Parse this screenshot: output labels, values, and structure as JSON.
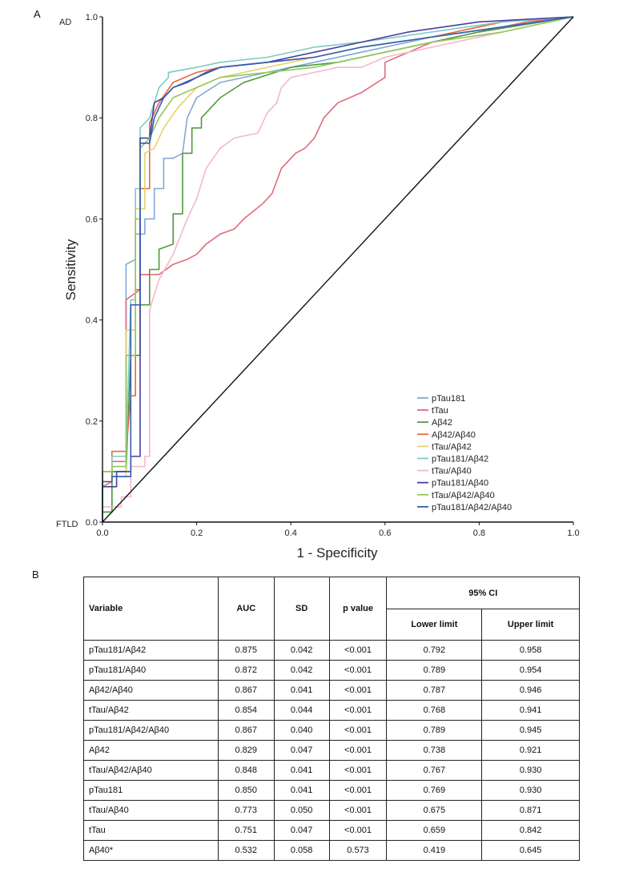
{
  "panel_a_label": "A",
  "panel_b_label": "B",
  "chart_data": {
    "type": "line",
    "xlabel": "1 - Specificity",
    "ylabel": "Sensitivity",
    "xlim": [
      0,
      1
    ],
    "ylim": [
      0,
      1
    ],
    "xticks": [
      "0.0",
      "0.2",
      "0.4",
      "0.6",
      "0.8",
      "1.0"
    ],
    "yticks": [
      "0.0",
      "0.2",
      "0.4",
      "0.6",
      "0.8",
      "1.0"
    ],
    "y_top_label": "AD",
    "y_bottom_label": "FTLD",
    "grid": false,
    "legend_position": "bottom-right",
    "reference_line": [
      [
        0,
        0
      ],
      [
        1,
        1
      ]
    ],
    "series": [
      {
        "name": "pTau181",
        "color": "#7fa9d6",
        "points": [
          [
            0,
            0
          ],
          [
            0,
            0.02
          ],
          [
            0.02,
            0.02
          ],
          [
            0.02,
            0.1
          ],
          [
            0.05,
            0.1
          ],
          [
            0.05,
            0.51
          ],
          [
            0.07,
            0.52
          ],
          [
            0.07,
            0.57
          ],
          [
            0.09,
            0.57
          ],
          [
            0.09,
            0.6
          ],
          [
            0.11,
            0.6
          ],
          [
            0.11,
            0.66
          ],
          [
            0.13,
            0.66
          ],
          [
            0.13,
            0.72
          ],
          [
            0.15,
            0.72
          ],
          [
            0.17,
            0.73
          ],
          [
            0.18,
            0.8
          ],
          [
            0.2,
            0.84
          ],
          [
            0.25,
            0.87
          ],
          [
            0.35,
            0.89
          ],
          [
            0.45,
            0.91
          ],
          [
            0.55,
            0.93
          ],
          [
            0.7,
            0.96
          ],
          [
            0.85,
            0.98
          ],
          [
            1,
            1
          ]
        ]
      },
      {
        "name": "tTau",
        "color": "#e06b7d",
        "points": [
          [
            0,
            0
          ],
          [
            0,
            0.07
          ],
          [
            0.02,
            0.08
          ],
          [
            0.02,
            0.12
          ],
          [
            0.05,
            0.12
          ],
          [
            0.05,
            0.44
          ],
          [
            0.08,
            0.46
          ],
          [
            0.08,
            0.49
          ],
          [
            0.12,
            0.49
          ],
          [
            0.15,
            0.51
          ],
          [
            0.18,
            0.52
          ],
          [
            0.2,
            0.53
          ],
          [
            0.22,
            0.55
          ],
          [
            0.25,
            0.57
          ],
          [
            0.28,
            0.58
          ],
          [
            0.3,
            0.6
          ],
          [
            0.34,
            0.63
          ],
          [
            0.36,
            0.65
          ],
          [
            0.38,
            0.7
          ],
          [
            0.41,
            0.73
          ],
          [
            0.43,
            0.74
          ],
          [
            0.44,
            0.75
          ],
          [
            0.45,
            0.76
          ],
          [
            0.47,
            0.8
          ],
          [
            0.49,
            0.82
          ],
          [
            0.5,
            0.83
          ],
          [
            0.55,
            0.85
          ],
          [
            0.6,
            0.88
          ],
          [
            0.6,
            0.91
          ],
          [
            0.65,
            0.93
          ],
          [
            0.7,
            0.95
          ],
          [
            0.8,
            0.97
          ],
          [
            0.9,
            0.99
          ],
          [
            1,
            1
          ]
        ]
      },
      {
        "name": "Aβ42",
        "color": "#4f9a3c",
        "points": [
          [
            0,
            0
          ],
          [
            0,
            0.02
          ],
          [
            0.02,
            0.02
          ],
          [
            0.02,
            0.1
          ],
          [
            0.05,
            0.1
          ],
          [
            0.06,
            0.33
          ],
          [
            0.08,
            0.33
          ],
          [
            0.08,
            0.43
          ],
          [
            0.1,
            0.43
          ],
          [
            0.1,
            0.5
          ],
          [
            0.12,
            0.5
          ],
          [
            0.12,
            0.54
          ],
          [
            0.15,
            0.55
          ],
          [
            0.15,
            0.61
          ],
          [
            0.17,
            0.61
          ],
          [
            0.17,
            0.73
          ],
          [
            0.19,
            0.73
          ],
          [
            0.19,
            0.78
          ],
          [
            0.21,
            0.78
          ],
          [
            0.21,
            0.8
          ],
          [
            0.25,
            0.84
          ],
          [
            0.3,
            0.87
          ],
          [
            0.4,
            0.9
          ],
          [
            0.5,
            0.91
          ],
          [
            0.6,
            0.93
          ],
          [
            0.7,
            0.95
          ],
          [
            0.8,
            0.97
          ],
          [
            1,
            1
          ]
        ]
      },
      {
        "name": "Aβ42/Aβ40",
        "color": "#e8683a",
        "points": [
          [
            0,
            0
          ],
          [
            0,
            0.1
          ],
          [
            0.02,
            0.1
          ],
          [
            0.02,
            0.14
          ],
          [
            0.05,
            0.14
          ],
          [
            0.06,
            0.25
          ],
          [
            0.07,
            0.25
          ],
          [
            0.07,
            0.46
          ],
          [
            0.08,
            0.46
          ],
          [
            0.08,
            0.66
          ],
          [
            0.1,
            0.66
          ],
          [
            0.1,
            0.79
          ],
          [
            0.12,
            0.83
          ],
          [
            0.15,
            0.87
          ],
          [
            0.2,
            0.89
          ],
          [
            0.25,
            0.9
          ],
          [
            0.35,
            0.91
          ],
          [
            0.45,
            0.92
          ],
          [
            0.55,
            0.94
          ],
          [
            0.7,
            0.96
          ],
          [
            0.85,
            0.99
          ],
          [
            1,
            1
          ]
        ]
      },
      {
        "name": "tTau/Aβ42",
        "color": "#e6d26a",
        "points": [
          [
            0,
            0
          ],
          [
            0,
            0.08
          ],
          [
            0.02,
            0.08
          ],
          [
            0.02,
            0.09
          ],
          [
            0.05,
            0.09
          ],
          [
            0.05,
            0.38
          ],
          [
            0.07,
            0.38
          ],
          [
            0.07,
            0.62
          ],
          [
            0.09,
            0.62
          ],
          [
            0.09,
            0.73
          ],
          [
            0.11,
            0.74
          ],
          [
            0.13,
            0.78
          ],
          [
            0.16,
            0.82
          ],
          [
            0.2,
            0.86
          ],
          [
            0.25,
            0.88
          ],
          [
            0.35,
            0.9
          ],
          [
            0.45,
            0.92
          ],
          [
            0.55,
            0.94
          ],
          [
            0.7,
            0.96
          ],
          [
            0.85,
            0.98
          ],
          [
            1,
            1
          ]
        ]
      },
      {
        "name": "pTau181/Aβ42",
        "color": "#7fc9c8",
        "points": [
          [
            0,
            0
          ],
          [
            0,
            0.1
          ],
          [
            0.02,
            0.1
          ],
          [
            0.02,
            0.13
          ],
          [
            0.05,
            0.13
          ],
          [
            0.06,
            0.44
          ],
          [
            0.07,
            0.44
          ],
          [
            0.07,
            0.66
          ],
          [
            0.08,
            0.66
          ],
          [
            0.08,
            0.78
          ],
          [
            0.1,
            0.8
          ],
          [
            0.12,
            0.86
          ],
          [
            0.14,
            0.88
          ],
          [
            0.14,
            0.89
          ],
          [
            0.2,
            0.9
          ],
          [
            0.25,
            0.91
          ],
          [
            0.35,
            0.92
          ],
          [
            0.45,
            0.94
          ],
          [
            0.55,
            0.95
          ],
          [
            0.7,
            0.97
          ],
          [
            0.85,
            0.99
          ],
          [
            1,
            1
          ]
        ]
      },
      {
        "name": "tTau/Aβ40",
        "color": "#f4b8c9",
        "points": [
          [
            0,
            0
          ],
          [
            0,
            0.03
          ],
          [
            0.04,
            0.03
          ],
          [
            0.04,
            0.05
          ],
          [
            0.06,
            0.05
          ],
          [
            0.06,
            0.11
          ],
          [
            0.09,
            0.11
          ],
          [
            0.09,
            0.13
          ],
          [
            0.1,
            0.13
          ],
          [
            0.1,
            0.42
          ],
          [
            0.12,
            0.48
          ],
          [
            0.15,
            0.53
          ],
          [
            0.18,
            0.6
          ],
          [
            0.2,
            0.64
          ],
          [
            0.22,
            0.7
          ],
          [
            0.25,
            0.74
          ],
          [
            0.28,
            0.76
          ],
          [
            0.33,
            0.77
          ],
          [
            0.35,
            0.81
          ],
          [
            0.37,
            0.83
          ],
          [
            0.38,
            0.86
          ],
          [
            0.4,
            0.88
          ],
          [
            0.45,
            0.89
          ],
          [
            0.5,
            0.9
          ],
          [
            0.55,
            0.9
          ],
          [
            0.6,
            0.92
          ],
          [
            0.7,
            0.94
          ],
          [
            0.8,
            0.96
          ],
          [
            0.9,
            0.98
          ],
          [
            1,
            1
          ]
        ]
      },
      {
        "name": "pTau181/Aβ40",
        "color": "#4a3fa0",
        "points": [
          [
            0,
            0
          ],
          [
            0,
            0.07
          ],
          [
            0.03,
            0.07
          ],
          [
            0.03,
            0.1
          ],
          [
            0.06,
            0.1
          ],
          [
            0.06,
            0.13
          ],
          [
            0.08,
            0.13
          ],
          [
            0.08,
            0.76
          ],
          [
            0.1,
            0.76
          ],
          [
            0.11,
            0.83
          ],
          [
            0.13,
            0.84
          ],
          [
            0.15,
            0.86
          ],
          [
            0.18,
            0.87
          ],
          [
            0.22,
            0.89
          ],
          [
            0.25,
            0.9
          ],
          [
            0.35,
            0.91
          ],
          [
            0.45,
            0.93
          ],
          [
            0.55,
            0.95
          ],
          [
            0.65,
            0.97
          ],
          [
            0.8,
            0.99
          ],
          [
            1,
            1
          ]
        ]
      },
      {
        "name": "tTau/Aβ42/Aβ40",
        "color": "#92c85a",
        "points": [
          [
            0,
            0
          ],
          [
            0,
            0.1
          ],
          [
            0.02,
            0.1
          ],
          [
            0.02,
            0.11
          ],
          [
            0.05,
            0.11
          ],
          [
            0.05,
            0.33
          ],
          [
            0.07,
            0.33
          ],
          [
            0.07,
            0.6
          ],
          [
            0.08,
            0.6
          ],
          [
            0.08,
            0.74
          ],
          [
            0.1,
            0.76
          ],
          [
            0.12,
            0.8
          ],
          [
            0.15,
            0.84
          ],
          [
            0.2,
            0.86
          ],
          [
            0.25,
            0.88
          ],
          [
            0.35,
            0.89
          ],
          [
            0.45,
            0.9
          ],
          [
            0.55,
            0.92
          ],
          [
            0.7,
            0.95
          ],
          [
            0.85,
            0.97
          ],
          [
            1,
            1
          ]
        ]
      },
      {
        "name": "pTau181/Aβ42/Aβ40",
        "color": "#2f5fb0",
        "points": [
          [
            0,
            0
          ],
          [
            0,
            0.08
          ],
          [
            0.02,
            0.08
          ],
          [
            0.02,
            0.09
          ],
          [
            0.06,
            0.09
          ],
          [
            0.06,
            0.43
          ],
          [
            0.08,
            0.43
          ],
          [
            0.08,
            0.75
          ],
          [
            0.1,
            0.75
          ],
          [
            0.11,
            0.8
          ],
          [
            0.13,
            0.84
          ],
          [
            0.15,
            0.86
          ],
          [
            0.2,
            0.88
          ],
          [
            0.25,
            0.9
          ],
          [
            0.35,
            0.91
          ],
          [
            0.45,
            0.92
          ],
          [
            0.55,
            0.94
          ],
          [
            0.7,
            0.96
          ],
          [
            0.85,
            0.98
          ],
          [
            1,
            1
          ]
        ]
      }
    ]
  },
  "table": {
    "headers": {
      "variable": "Variable",
      "auc": "AUC",
      "sd": "SD",
      "p_value": "p value",
      "ci": "95% CI",
      "lower": "Lower limit",
      "upper": "Upper limit"
    },
    "rows": [
      {
        "variable": "pTau181/Aβ42",
        "auc": "0.875",
        "sd": "0.042",
        "p": "<0.001",
        "lower": "0.792",
        "upper": "0.958"
      },
      {
        "variable": "pTau181/Aβ40",
        "auc": "0.872",
        "sd": "0.042",
        "p": "<0.001",
        "lower": "0.789",
        "upper": "0.954"
      },
      {
        "variable": "Aβ42/Aβ40",
        "auc": "0.867",
        "sd": "0.041",
        "p": "<0.001",
        "lower": "0.787",
        "upper": "0.946"
      },
      {
        "variable": "tTau/Aβ42",
        "auc": "0.854",
        "sd": "0.044",
        "p": "<0.001",
        "lower": "0.768",
        "upper": "0.941"
      },
      {
        "variable": "pTau181/Aβ42/Aβ40",
        "auc": "0.867",
        "sd": "0.040",
        "p": "<0.001",
        "lower": "0.789",
        "upper": "0.945"
      },
      {
        "variable": "Aβ42",
        "auc": "0.829",
        "sd": "0.047",
        "p": "<0.001",
        "lower": "0.738",
        "upper": "0.921"
      },
      {
        "variable": "tTau/Aβ42/Aβ40",
        "auc": "0.848",
        "sd": "0.041",
        "p": "<0.001",
        "lower": "0.767",
        "upper": "0.930"
      },
      {
        "variable": "pTau181",
        "auc": "0.850",
        "sd": "0.041",
        "p": "<0.001",
        "lower": "0.769",
        "upper": "0.930"
      },
      {
        "variable": "tTau/Aβ40",
        "auc": "0.773",
        "sd": "0.050",
        "p": "<0.001",
        "lower": "0.675",
        "upper": "0.871"
      },
      {
        "variable": "tTau",
        "auc": "0.751",
        "sd": "0.047",
        "p": "<0.001",
        "lower": "0.659",
        "upper": "0.842"
      },
      {
        "variable": "Aβ40*",
        "auc": "0.532",
        "sd": "0.058",
        "p": "0.573",
        "lower": "0.419",
        "upper": "0.645"
      }
    ]
  }
}
